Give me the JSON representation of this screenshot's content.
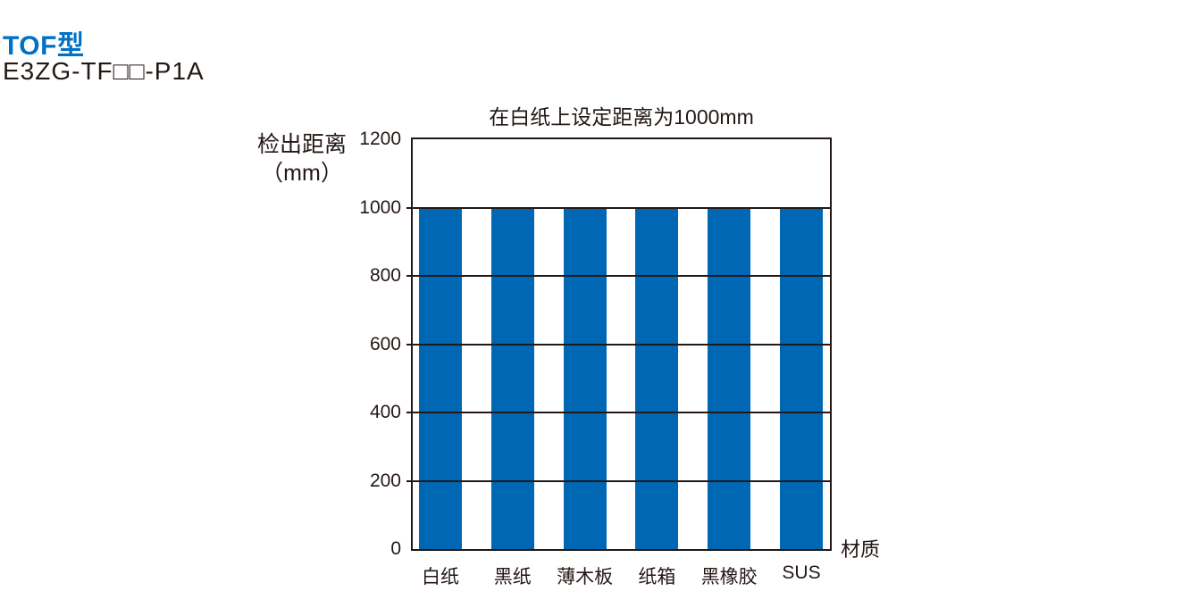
{
  "header": {
    "section_title": "TOF型",
    "model": "E3ZG-TF□□-P1A"
  },
  "chart_data": {
    "type": "bar",
    "title": "在白纸上设定距离为1000mm",
    "categories": [
      "白纸",
      "黑纸",
      "薄木板",
      "纸箱",
      "黑橡胶",
      "SUS"
    ],
    "values": [
      1000,
      1000,
      1000,
      1000,
      1000,
      1000
    ],
    "xlabel": "材质",
    "ylabel": "检出距离",
    "ylabel_unit": "（mm）",
    "ylim": [
      0,
      1200
    ],
    "yticks": [
      0,
      200,
      400,
      600,
      800,
      1000,
      1200
    ],
    "grid": true,
    "legend": "none"
  },
  "colors": {
    "heading_blue": "#0072C6",
    "bar_blue": "#0067B4",
    "axis_black": "#231815"
  }
}
